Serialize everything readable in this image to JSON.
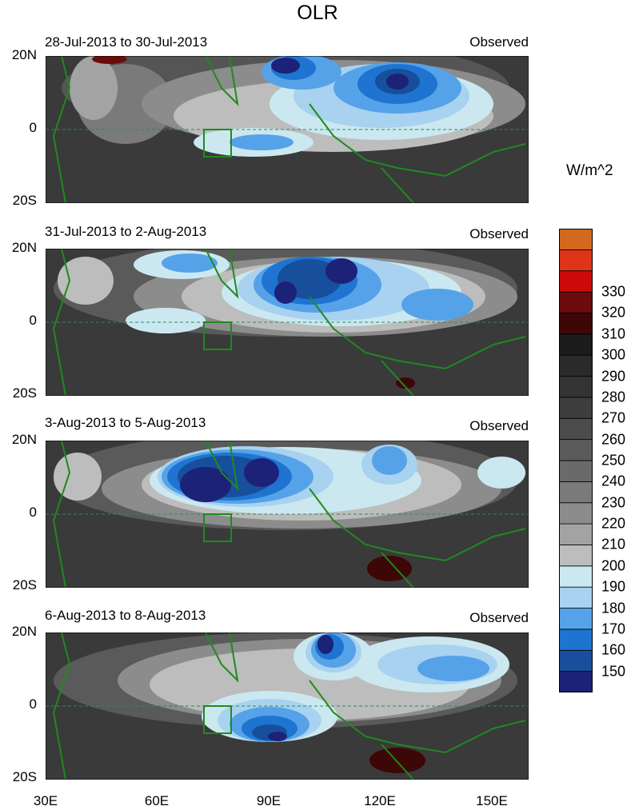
{
  "title": "OLR",
  "units": "W/m^2",
  "panels": [
    {
      "date_range": "28-Jul-2013 to 30-Jul-2013",
      "label": "Observed"
    },
    {
      "date_range": "31-Jul-2013 to 2-Aug-2013",
      "label": "Observed"
    },
    {
      "date_range": "3-Aug-2013 to 5-Aug-2013",
      "label": "Observed"
    },
    {
      "date_range": "6-Aug-2013 to 8-Aug-2013",
      "label": "Observed"
    }
  ],
  "lat_labels": [
    "20N",
    "0",
    "20S"
  ],
  "lon_labels": [
    "30E",
    "60E",
    "90E",
    "120E",
    "150E"
  ],
  "colorbar": {
    "colors": [
      "#1c2277",
      "#174f9c",
      "#1e74d0",
      "#55a2e9",
      "#a8d2ef",
      "#cbe8f0",
      "#bdbdbd",
      "#a3a3a3",
      "#8c8c8c",
      "#7a7a7a",
      "#6a6a6a",
      "#5a5a5a",
      "#4c4c4c",
      "#3e3e3e",
      "#333333",
      "#2a2a2a",
      "#1c1c1c",
      "#3d0707",
      "#6b0b0b",
      "#cc0a0a",
      "#e0341a",
      "#d2691e"
    ],
    "labels": [
      "150",
      "160",
      "170",
      "180",
      "190",
      "200",
      "210",
      "220",
      "230",
      "240",
      "250",
      "260",
      "270",
      "280",
      "290",
      "300",
      "310",
      "320",
      "330"
    ]
  }
}
